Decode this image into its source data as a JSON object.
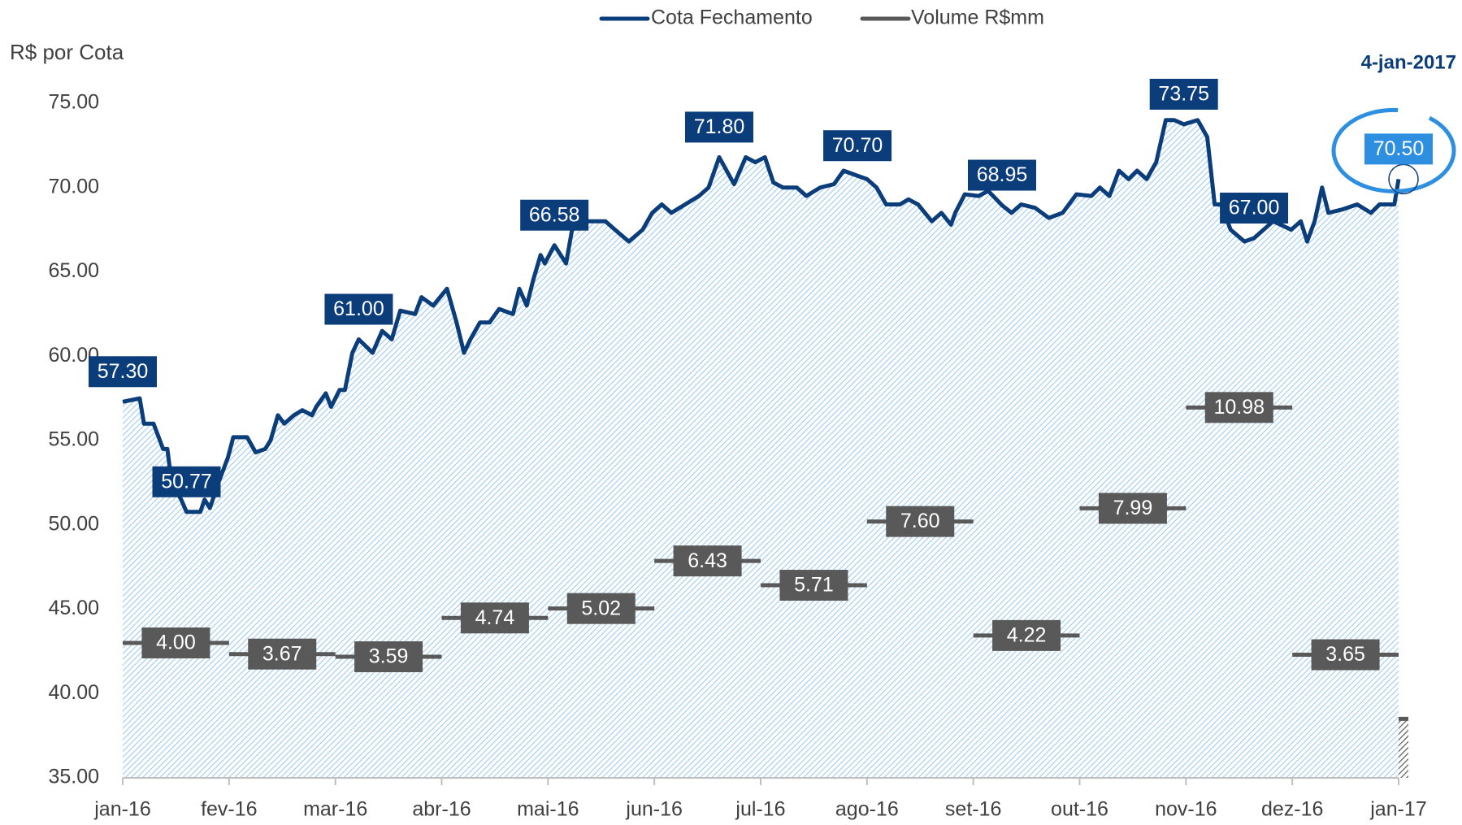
{
  "chart_data": {
    "type": "line",
    "y_axis_title": "R$ por Cota",
    "annotation": "4-jan-2017",
    "xlim": [
      0,
      12
    ],
    "xticks": [
      {
        "value": 0,
        "label": "jan-16"
      },
      {
        "value": 1,
        "label": "fev-16"
      },
      {
        "value": 2,
        "label": "mar-16"
      },
      {
        "value": 3,
        "label": "abr-16"
      },
      {
        "value": 4,
        "label": "mai-16"
      },
      {
        "value": 5,
        "label": "jun-16"
      },
      {
        "value": 6,
        "label": "jul-16"
      },
      {
        "value": 7,
        "label": "ago-16"
      },
      {
        "value": 8,
        "label": "set-16"
      },
      {
        "value": 9,
        "label": "out-16"
      },
      {
        "value": 10,
        "label": "nov-16"
      },
      {
        "value": 11,
        "label": "dez-16"
      },
      {
        "value": 12,
        "label": "jan-17"
      }
    ],
    "ylim": [
      35,
      75
    ],
    "yticks": [
      {
        "value": 35,
        "label": "35.00"
      },
      {
        "value": 40,
        "label": "40.00"
      },
      {
        "value": 45,
        "label": "45.00"
      },
      {
        "value": 50,
        "label": "50.00"
      },
      {
        "value": 55,
        "label": "55.00"
      },
      {
        "value": 60,
        "label": "60.00"
      },
      {
        "value": 65,
        "label": "65.00"
      },
      {
        "value": 70,
        "label": "70.00"
      },
      {
        "value": 75,
        "label": "75.00"
      }
    ],
    "y2lim": [
      0,
      20
    ],
    "grid": false,
    "legend": "top",
    "series": [
      {
        "name": "Cota Fechamento",
        "color": "#0b3d7a",
        "fill": "#9dcbf0",
        "x": [
          0,
          0.16,
          0.2,
          0.29,
          0.38,
          0.42,
          0.46,
          0.55,
          0.6,
          0.73,
          0.77,
          0.82,
          0.9,
          0.99,
          1.04,
          1.17,
          1.25,
          1.34,
          1.39,
          1.46,
          1.52,
          1.61,
          1.69,
          1.78,
          1.82,
          1.91,
          1.96,
          2.04,
          2.09,
          2.16,
          2.22,
          2.35,
          2.44,
          2.53,
          2.61,
          2.75,
          2.81,
          2.92,
          3.05,
          3.14,
          3.21,
          3.27,
          3.36,
          3.45,
          3.54,
          3.67,
          3.73,
          3.8,
          3.86,
          3.93,
          3.97,
          4.06,
          4.17,
          4.24,
          4.54,
          4.63,
          4.76,
          4.89,
          4.98,
          5.07,
          5.16,
          5.29,
          5.42,
          5.51,
          5.61,
          5.68,
          5.75,
          5.86,
          5.95,
          6.04,
          6.12,
          6.21,
          6.34,
          6.43,
          6.56,
          6.69,
          6.78,
          6.91,
          7.0,
          7.09,
          7.18,
          7.31,
          7.39,
          7.48,
          7.61,
          7.7,
          7.79,
          7.83,
          7.92,
          8.05,
          8.14,
          8.27,
          8.36,
          8.45,
          8.58,
          8.71,
          8.84,
          8.97,
          9.11,
          9.19,
          9.28,
          9.37,
          9.46,
          9.54,
          9.63,
          9.72,
          9.81,
          9.89,
          9.98,
          10.11,
          10.2,
          10.27,
          10.33,
          10.42,
          10.55,
          10.64,
          10.82,
          10.99,
          11.08,
          11.14,
          11.21,
          11.28,
          11.34,
          11.47,
          11.61,
          11.74,
          11.82,
          11.96,
          12
        ],
        "values": [
          57.3,
          57.5,
          56,
          56,
          54.5,
          54.5,
          52.5,
          51.5,
          50.77,
          50.77,
          51.5,
          51,
          52.5,
          54,
          55.2,
          55.2,
          54.3,
          54.5,
          55,
          56.5,
          56,
          56.5,
          56.8,
          56.5,
          57,
          57.8,
          57,
          58,
          58,
          60.2,
          61,
          60.2,
          61.5,
          61,
          62.7,
          62.5,
          63.5,
          63,
          64,
          62,
          60.2,
          61,
          62,
          62,
          62.8,
          62.5,
          64,
          63,
          64.5,
          66,
          65.5,
          66.58,
          65.5,
          68,
          68,
          67.5,
          66.8,
          67.5,
          68.5,
          69,
          68.5,
          69,
          69.5,
          70,
          71.8,
          71,
          70.2,
          71.8,
          71.5,
          71.8,
          70.3,
          70,
          70,
          69.5,
          70,
          70.2,
          71,
          70.7,
          70.5,
          70,
          69,
          69,
          69.3,
          69,
          68,
          68.5,
          67.8,
          68.5,
          69.6,
          69.5,
          69.8,
          68.95,
          68.5,
          69,
          68.8,
          68.2,
          68.5,
          69.6,
          69.5,
          70,
          69.5,
          71,
          70.5,
          71,
          70.5,
          71.5,
          74,
          74,
          73.75,
          74,
          73,
          69,
          69,
          67.5,
          66.8,
          67,
          68,
          67.5,
          68,
          66.8,
          68,
          70,
          68.5,
          68.7,
          69,
          68.5,
          69,
          69,
          70.5
        ],
        "value_labels": [
          "57.30",
          null,
          null,
          null,
          null,
          null,
          null,
          null,
          "50.77",
          null,
          null,
          null,
          null,
          null,
          null,
          null,
          null,
          null,
          null,
          null,
          null,
          null,
          null,
          null,
          null,
          null,
          null,
          null,
          null,
          null,
          "61.00",
          null,
          null,
          null,
          null,
          null,
          null,
          null,
          null,
          null,
          null,
          null,
          null,
          null,
          null,
          null,
          null,
          null,
          null,
          null,
          null,
          "66.58",
          null,
          null,
          null,
          null,
          null,
          null,
          null,
          null,
          null,
          null,
          null,
          null,
          "71.80",
          null,
          null,
          null,
          null,
          null,
          null,
          null,
          null,
          null,
          null,
          null,
          null,
          "70.70",
          null,
          null,
          null,
          null,
          null,
          null,
          null,
          null,
          null,
          null,
          null,
          null,
          null,
          "68.95",
          null,
          null,
          null,
          null,
          null,
          null,
          null,
          null,
          null,
          null,
          null,
          null,
          null,
          null,
          null,
          null,
          "73.75",
          null,
          null,
          null,
          null,
          null,
          null,
          "67.00",
          null,
          null,
          null,
          null,
          null,
          null,
          null,
          null,
          null,
          null,
          null,
          null,
          "70.50"
        ]
      },
      {
        "name": "Volume R$mm",
        "color": "#595959",
        "fill": "#595959",
        "axis": "y2",
        "type": "step",
        "x": [
          0,
          1,
          2,
          3,
          4,
          5,
          6,
          7,
          8,
          9,
          10,
          11,
          12
        ],
        "values": [
          4.0,
          3.67,
          3.59,
          4.74,
          5.02,
          6.43,
          5.71,
          7.6,
          4.22,
          7.99,
          10.98,
          3.65,
          1.75
        ],
        "value_labels": [
          "4.00",
          "3.67",
          "3.59",
          "4.74",
          "5.02",
          "6.43",
          "5.71",
          "7.60",
          "4.22",
          "7.99",
          "10.98",
          "3.65",
          null
        ]
      }
    ]
  }
}
